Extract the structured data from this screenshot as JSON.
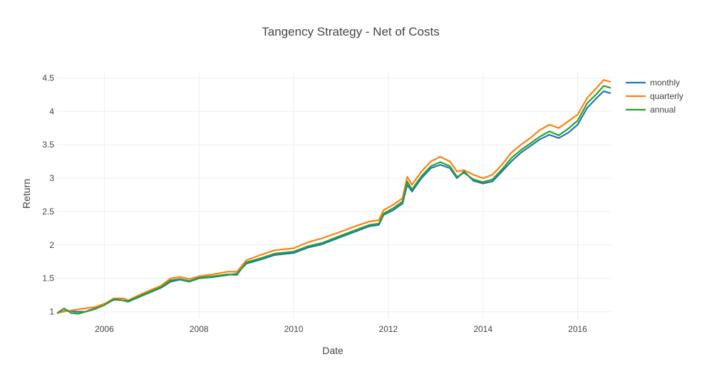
{
  "chart_data": {
    "type": "line",
    "title": "Tangency Strategy - Net of Costs",
    "xlabel": "Date",
    "ylabel": "Return",
    "xlim": [
      2005.0,
      2016.7
    ],
    "ylim": [
      0.9,
      4.6
    ],
    "x_ticks": [
      2006,
      2008,
      2010,
      2012,
      2014,
      2016
    ],
    "x_tick_labels": [
      "2006",
      "2008",
      "2010",
      "2012",
      "2014",
      "2016"
    ],
    "y_ticks": [
      1,
      1.5,
      2,
      2.5,
      3,
      3.5,
      4,
      4.5
    ],
    "y_tick_labels": [
      "1",
      "1.5",
      "2",
      "2.5",
      "3",
      "3.5",
      "4",
      "4.5"
    ],
    "grid": true,
    "legend_position": "top-right",
    "series": [
      {
        "name": "monthly",
        "color": "#1f77b4",
        "points": [
          [
            2005.0,
            0.98
          ],
          [
            2005.2,
            1.02
          ],
          [
            2005.4,
            1.0
          ],
          [
            2005.6,
            1.0
          ],
          [
            2005.8,
            1.05
          ],
          [
            2006.0,
            1.1
          ],
          [
            2006.2,
            1.18
          ],
          [
            2006.4,
            1.17
          ],
          [
            2006.5,
            1.15
          ],
          [
            2006.8,
            1.24
          ],
          [
            2007.0,
            1.3
          ],
          [
            2007.2,
            1.36
          ],
          [
            2007.4,
            1.45
          ],
          [
            2007.6,
            1.48
          ],
          [
            2007.8,
            1.45
          ],
          [
            2008.0,
            1.5
          ],
          [
            2008.3,
            1.52
          ],
          [
            2008.6,
            1.55
          ],
          [
            2008.8,
            1.57
          ],
          [
            2009.0,
            1.72
          ],
          [
            2009.3,
            1.78
          ],
          [
            2009.6,
            1.85
          ],
          [
            2010.0,
            1.88
          ],
          [
            2010.3,
            1.96
          ],
          [
            2010.6,
            2.01
          ],
          [
            2011.0,
            2.12
          ],
          [
            2011.3,
            2.2
          ],
          [
            2011.6,
            2.28
          ],
          [
            2011.8,
            2.3
          ],
          [
            2011.9,
            2.45
          ],
          [
            2012.1,
            2.52
          ],
          [
            2012.3,
            2.62
          ],
          [
            2012.4,
            2.9
          ],
          [
            2012.5,
            2.8
          ],
          [
            2012.7,
            3.0
          ],
          [
            2012.9,
            3.15
          ],
          [
            2013.1,
            3.2
          ],
          [
            2013.3,
            3.15
          ],
          [
            2013.45,
            3.0
          ],
          [
            2013.6,
            3.1
          ],
          [
            2013.8,
            2.96
          ],
          [
            2014.0,
            2.92
          ],
          [
            2014.2,
            2.95
          ],
          [
            2014.4,
            3.1
          ],
          [
            2014.6,
            3.25
          ],
          [
            2014.8,
            3.38
          ],
          [
            2015.0,
            3.48
          ],
          [
            2015.2,
            3.58
          ],
          [
            2015.4,
            3.65
          ],
          [
            2015.6,
            3.6
          ],
          [
            2015.8,
            3.68
          ],
          [
            2016.0,
            3.8
          ],
          [
            2016.2,
            4.05
          ],
          [
            2016.4,
            4.2
          ],
          [
            2016.55,
            4.3
          ],
          [
            2016.7,
            4.27
          ]
        ]
      },
      {
        "name": "quarterly",
        "color": "#ff7f0e",
        "points": [
          [
            2005.0,
            0.98
          ],
          [
            2005.2,
            1.01
          ],
          [
            2005.4,
            1.03
          ],
          [
            2005.6,
            1.05
          ],
          [
            2005.8,
            1.07
          ],
          [
            2006.0,
            1.12
          ],
          [
            2006.2,
            1.2
          ],
          [
            2006.4,
            1.2
          ],
          [
            2006.5,
            1.17
          ],
          [
            2006.8,
            1.27
          ],
          [
            2007.0,
            1.33
          ],
          [
            2007.2,
            1.39
          ],
          [
            2007.4,
            1.5
          ],
          [
            2007.6,
            1.52
          ],
          [
            2007.8,
            1.49
          ],
          [
            2008.0,
            1.53
          ],
          [
            2008.3,
            1.56
          ],
          [
            2008.6,
            1.6
          ],
          [
            2008.8,
            1.6
          ],
          [
            2009.0,
            1.77
          ],
          [
            2009.3,
            1.85
          ],
          [
            2009.6,
            1.92
          ],
          [
            2010.0,
            1.95
          ],
          [
            2010.3,
            2.04
          ],
          [
            2010.6,
            2.1
          ],
          [
            2011.0,
            2.2
          ],
          [
            2011.3,
            2.28
          ],
          [
            2011.6,
            2.35
          ],
          [
            2011.8,
            2.37
          ],
          [
            2011.9,
            2.52
          ],
          [
            2012.1,
            2.6
          ],
          [
            2012.3,
            2.7
          ],
          [
            2012.4,
            3.02
          ],
          [
            2012.5,
            2.9
          ],
          [
            2012.7,
            3.1
          ],
          [
            2012.9,
            3.25
          ],
          [
            2013.1,
            3.32
          ],
          [
            2013.3,
            3.25
          ],
          [
            2013.45,
            3.1
          ],
          [
            2013.6,
            3.12
          ],
          [
            2013.8,
            3.05
          ],
          [
            2014.0,
            3.0
          ],
          [
            2014.2,
            3.05
          ],
          [
            2014.4,
            3.2
          ],
          [
            2014.6,
            3.38
          ],
          [
            2014.8,
            3.5
          ],
          [
            2015.0,
            3.6
          ],
          [
            2015.2,
            3.72
          ],
          [
            2015.4,
            3.8
          ],
          [
            2015.6,
            3.75
          ],
          [
            2015.8,
            3.85
          ],
          [
            2016.0,
            3.95
          ],
          [
            2016.2,
            4.2
          ],
          [
            2016.4,
            4.35
          ],
          [
            2016.55,
            4.47
          ],
          [
            2016.7,
            4.44
          ]
        ]
      },
      {
        "name": "annual",
        "color": "#2ca02c",
        "points": [
          [
            2005.0,
            0.98
          ],
          [
            2005.15,
            1.05
          ],
          [
            2005.3,
            0.98
          ],
          [
            2005.45,
            0.97
          ],
          [
            2005.6,
            1.0
          ],
          [
            2005.8,
            1.04
          ],
          [
            2006.0,
            1.1
          ],
          [
            2006.2,
            1.19
          ],
          [
            2006.4,
            1.17
          ],
          [
            2006.5,
            1.16
          ],
          [
            2006.8,
            1.25
          ],
          [
            2007.0,
            1.31
          ],
          [
            2007.2,
            1.37
          ],
          [
            2007.4,
            1.47
          ],
          [
            2007.6,
            1.49
          ],
          [
            2007.8,
            1.46
          ],
          [
            2008.0,
            1.51
          ],
          [
            2008.3,
            1.53
          ],
          [
            2008.6,
            1.56
          ],
          [
            2008.8,
            1.55
          ],
          [
            2009.0,
            1.74
          ],
          [
            2009.3,
            1.8
          ],
          [
            2009.6,
            1.87
          ],
          [
            2010.0,
            1.9
          ],
          [
            2010.3,
            1.98
          ],
          [
            2010.6,
            2.03
          ],
          [
            2011.0,
            2.14
          ],
          [
            2011.3,
            2.22
          ],
          [
            2011.6,
            2.3
          ],
          [
            2011.8,
            2.32
          ],
          [
            2011.9,
            2.47
          ],
          [
            2012.1,
            2.55
          ],
          [
            2012.3,
            2.65
          ],
          [
            2012.4,
            2.95
          ],
          [
            2012.5,
            2.83
          ],
          [
            2012.7,
            3.03
          ],
          [
            2012.9,
            3.18
          ],
          [
            2013.1,
            3.24
          ],
          [
            2013.3,
            3.18
          ],
          [
            2013.45,
            3.02
          ],
          [
            2013.6,
            3.08
          ],
          [
            2013.8,
            2.98
          ],
          [
            2014.0,
            2.94
          ],
          [
            2014.2,
            2.98
          ],
          [
            2014.4,
            3.13
          ],
          [
            2014.6,
            3.3
          ],
          [
            2014.8,
            3.42
          ],
          [
            2015.0,
            3.52
          ],
          [
            2015.2,
            3.62
          ],
          [
            2015.4,
            3.7
          ],
          [
            2015.6,
            3.64
          ],
          [
            2015.8,
            3.74
          ],
          [
            2016.0,
            3.86
          ],
          [
            2016.2,
            4.12
          ],
          [
            2016.4,
            4.26
          ],
          [
            2016.55,
            4.38
          ],
          [
            2016.7,
            4.35
          ]
        ]
      }
    ]
  }
}
